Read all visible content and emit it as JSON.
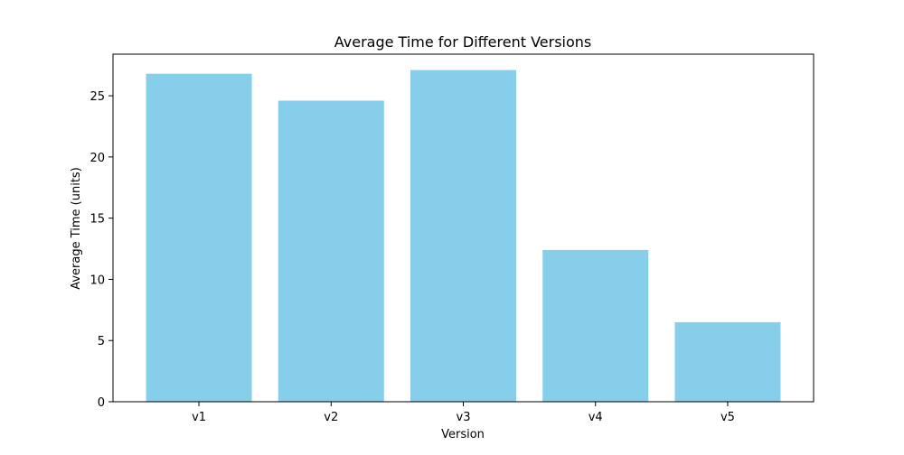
{
  "chart_data": {
    "type": "bar",
    "title": "Average Time for Different Versions",
    "xlabel": "Version",
    "ylabel": "Average Time (units)",
    "categories": [
      "v1",
      "v2",
      "v3",
      "v4",
      "v5"
    ],
    "values": [
      26.8,
      24.6,
      27.1,
      12.4,
      6.5
    ],
    "ylim": [
      0,
      28.4
    ],
    "yticks": [
      0,
      5,
      10,
      15,
      20,
      25
    ],
    "grid": false,
    "bar_color": "#87ceeb",
    "axis_color": "#000000"
  }
}
